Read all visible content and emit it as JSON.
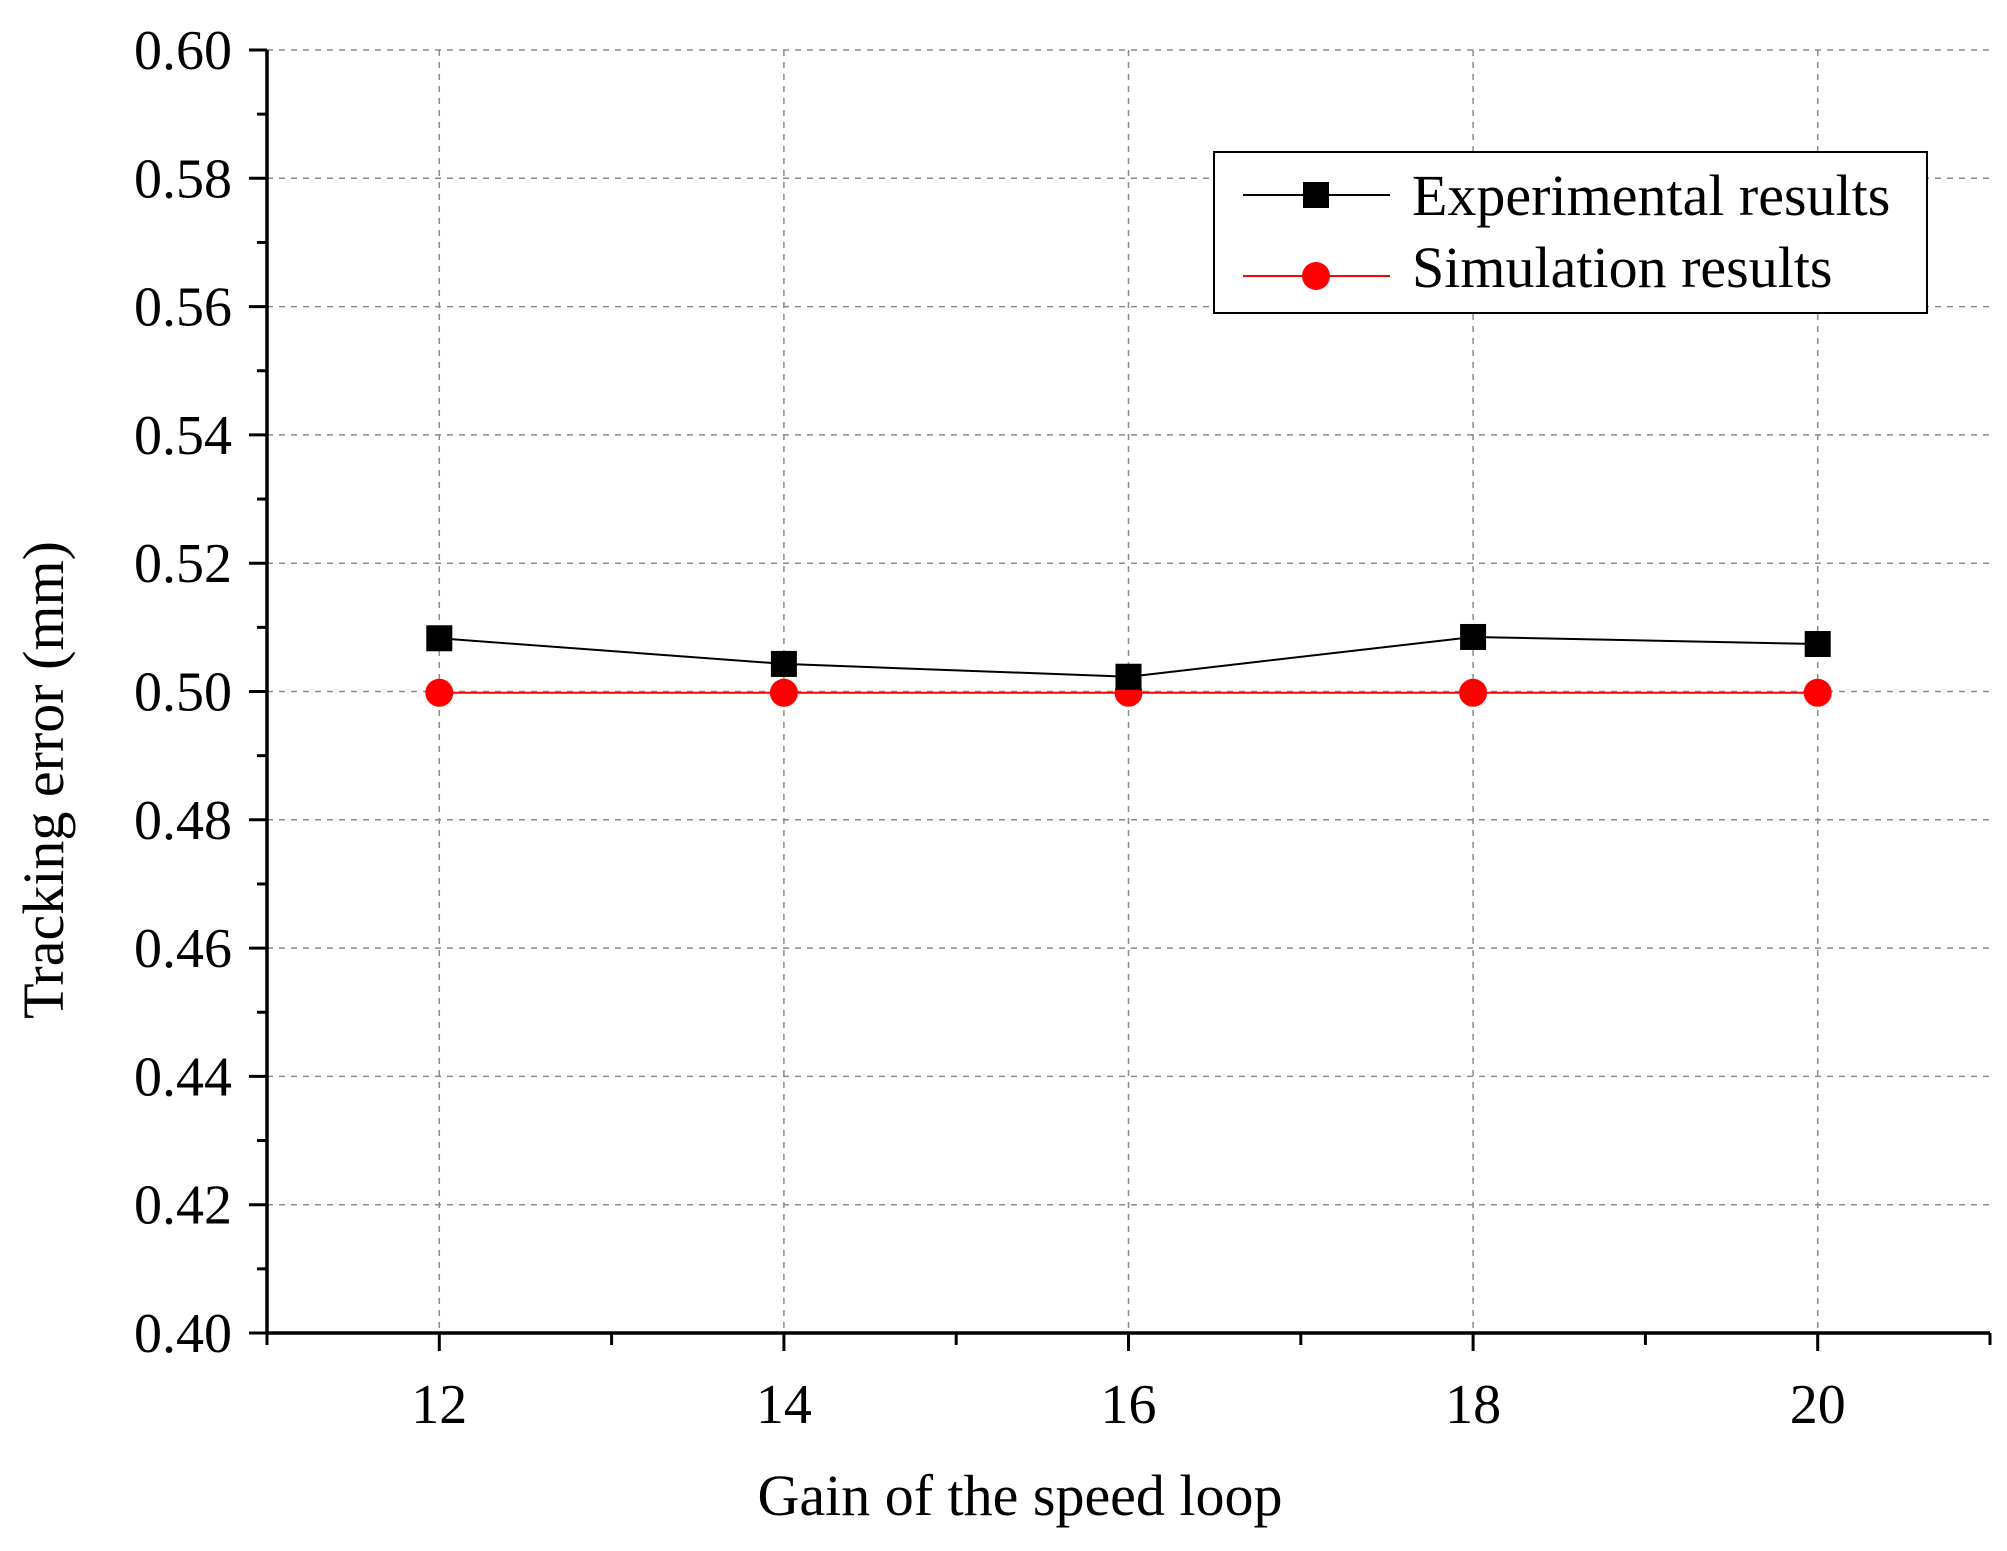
{
  "chart_data": {
    "type": "line",
    "title": "",
    "xlabel": "Gain of the speed loop",
    "ylabel": "Tracking error (mm)",
    "x": [
      12,
      14,
      16,
      18,
      20
    ],
    "xlim": [
      11,
      21
    ],
    "ylim": [
      0.4,
      0.6
    ],
    "xticks": [
      "12",
      "14",
      "16",
      "18",
      "20"
    ],
    "yticks": [
      "0.40",
      "0.42",
      "0.44",
      "0.46",
      "0.48",
      "0.50",
      "0.52",
      "0.54",
      "0.56",
      "0.58",
      "0.60"
    ],
    "grid": true,
    "legend_position": "top-right",
    "series": [
      {
        "name": "Experimental results",
        "values": [
          0.5083,
          0.5043,
          0.5023,
          0.5085,
          0.5074
        ],
        "color": "#000000",
        "marker": "square"
      },
      {
        "name": "Simulation results",
        "values": [
          0.4998,
          0.4998,
          0.4998,
          0.4998,
          0.4998
        ],
        "color": "#ff0000",
        "marker": "circle"
      }
    ]
  }
}
